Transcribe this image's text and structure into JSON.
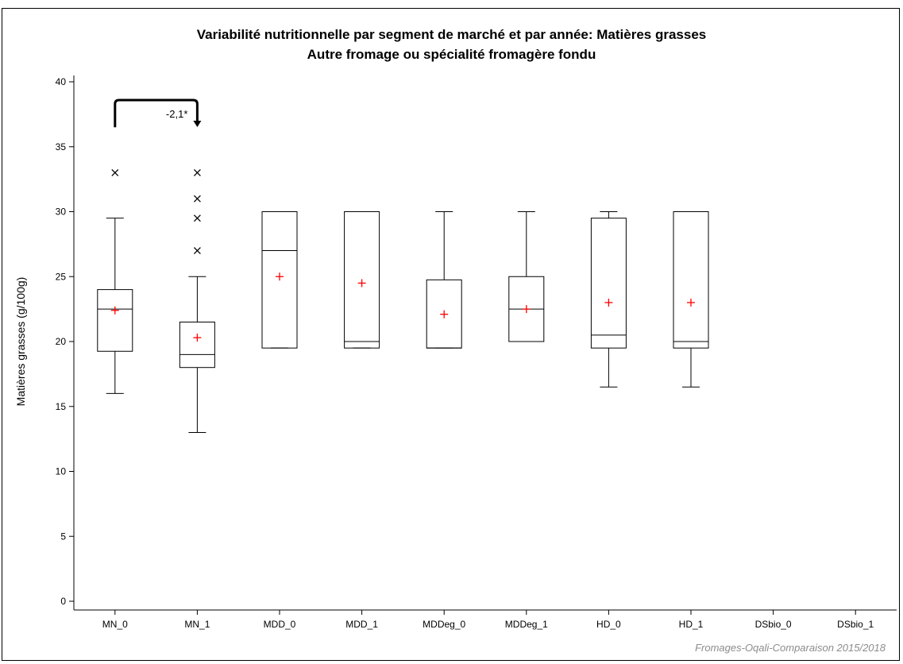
{
  "chart_data": {
    "type": "boxplot",
    "title": "Variabilité nutritionnelle par segment de marché et par année: Matières grasses",
    "subtitle": "Autre fromage ou spécialité fromagère fondu",
    "ylabel": "Matières grasses (g/100g)",
    "xlabel": "",
    "ylim": [
      0,
      40
    ],
    "yticks": [
      0,
      5,
      10,
      15,
      20,
      25,
      30,
      35,
      40
    ],
    "categories": [
      "MN_0",
      "MN_1",
      "MDD_0",
      "MDD_1",
      "MDDeg_0",
      "MDDeg_1",
      "HD_0",
      "HD_1",
      "DSbio_0",
      "DSbio_1"
    ],
    "boxes": [
      {
        "category": "MN_0",
        "whisker_low": 16,
        "q1": 19.25,
        "median": 22.5,
        "q3": 24,
        "whisker_high": 29.5,
        "mean": 22.4,
        "outliers": [
          33
        ]
      },
      {
        "category": "MN_1",
        "whisker_low": 13,
        "q1": 18,
        "median": 19,
        "q3": 21.5,
        "whisker_high": 25,
        "mean": 20.3,
        "outliers": [
          27,
          29.5,
          31,
          33
        ]
      },
      {
        "category": "MDD_0",
        "whisker_low": 19.5,
        "q1": 19.5,
        "median": 27,
        "q3": 30,
        "whisker_high": 30,
        "mean": 25,
        "outliers": []
      },
      {
        "category": "MDD_1",
        "whisker_low": 19.5,
        "q1": 19.5,
        "median": 20,
        "q3": 30,
        "whisker_high": 30,
        "mean": 24.5,
        "outliers": []
      },
      {
        "category": "MDDeg_0",
        "whisker_low": 19.5,
        "q1": 19.5,
        "median": 19.5,
        "q3": 24.75,
        "whisker_high": 30,
        "mean": 22.1,
        "outliers": []
      },
      {
        "category": "MDDeg_1",
        "whisker_low": 20,
        "q1": 20,
        "median": 22.5,
        "q3": 25,
        "whisker_high": 30,
        "mean": 22.5,
        "outliers": []
      },
      {
        "category": "HD_0",
        "whisker_low": 16.5,
        "q1": 19.5,
        "median": 20.5,
        "q3": 29.5,
        "whisker_high": 30,
        "mean": 23,
        "outliers": []
      },
      {
        "category": "HD_1",
        "whisker_low": 16.5,
        "q1": 19.5,
        "median": 20,
        "q3": 30,
        "whisker_high": 30,
        "mean": 23,
        "outliers": []
      },
      {
        "category": "DSbio_0"
      },
      {
        "category": "DSbio_1"
      }
    ],
    "annotation": {
      "label": "-2,1*",
      "from": "MN_0",
      "to": "MN_1",
      "value": 36.5
    },
    "grid": false,
    "colors": {
      "box": "#000000",
      "mean_marker": "#ff0000",
      "outlier_marker": "#000000"
    }
  },
  "source": "Fromages-Oqali-Comparaison 2015/2018"
}
